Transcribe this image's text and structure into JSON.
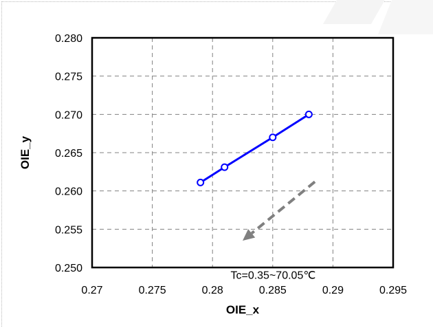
{
  "chart_data": {
    "type": "line",
    "title": "",
    "xlabel": "OIE_x",
    "ylabel": "OIE_y",
    "xlim": [
      0.27,
      0.295
    ],
    "ylim": [
      0.25,
      0.28
    ],
    "xticks": [
      "0.27",
      "0.275",
      "0.28",
      "0.285",
      "0.29",
      "0.295"
    ],
    "yticks": [
      "0.250",
      "0.255",
      "0.260",
      "0.265",
      "0.270",
      "0.275",
      "0.280"
    ],
    "grid": true,
    "series": [
      {
        "x": [
          0.279,
          0.281,
          0.285,
          0.288
        ],
        "y": [
          0.2611,
          0.2631,
          0.267,
          0.27
        ],
        "color": "#0000ff",
        "marker": "open-circle"
      }
    ],
    "annotations": [
      {
        "text": "Tc=0.35~70.05℃",
        "x": 0.2815,
        "y": 0.2485
      }
    ],
    "arrow": {
      "from": [
        0.2885,
        0.2612
      ],
      "to": [
        0.2825,
        0.2535
      ],
      "color": "#808080",
      "style": "dashed"
    }
  }
}
